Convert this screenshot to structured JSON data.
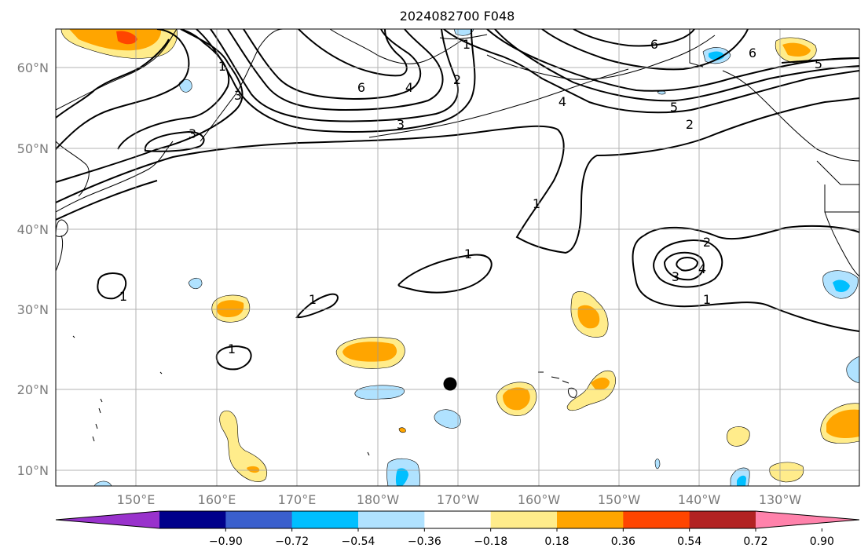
{
  "title": "2024082700 F048",
  "lat_labels": [
    "60°N",
    "50°N",
    "40°N",
    "30°N",
    "20°N",
    "10°N"
  ],
  "lon_labels": [
    "150°E",
    "160°E",
    "170°E",
    "180°W",
    "170°W",
    "160°W",
    "150°W",
    "140°W",
    "130°W"
  ],
  "colorbar": {
    "colors": [
      "#9932CC",
      "#00008B",
      "#3A5FCD",
      "#00BFFF",
      "#B0E2FF",
      "#FFFFFF",
      "#FFEC8B",
      "#FFA500",
      "#FF4500",
      "#B22222",
      "#FF82AB"
    ],
    "tick_labels": [
      "−0.90",
      "−0.72",
      "−0.54",
      "−0.36",
      "−0.18",
      "0.18",
      "0.36",
      "0.54",
      "0.72",
      "0.90"
    ]
  },
  "contour_labels": {
    "a": "6",
    "b": "4",
    "c": "2",
    "d": "3",
    "e": "1",
    "f": "1",
    "g": "1",
    "h": "1",
    "i": "1",
    "j": "6",
    "k": "4",
    "l": "5",
    "m": "2",
    "n": "2",
    "o": "3",
    "p": "4",
    "q": "1",
    "r": "6",
    "s": "5",
    "t": "3",
    "u": "1",
    "v": "1",
    "w": "3"
  },
  "marker": "storm-position-dot"
}
